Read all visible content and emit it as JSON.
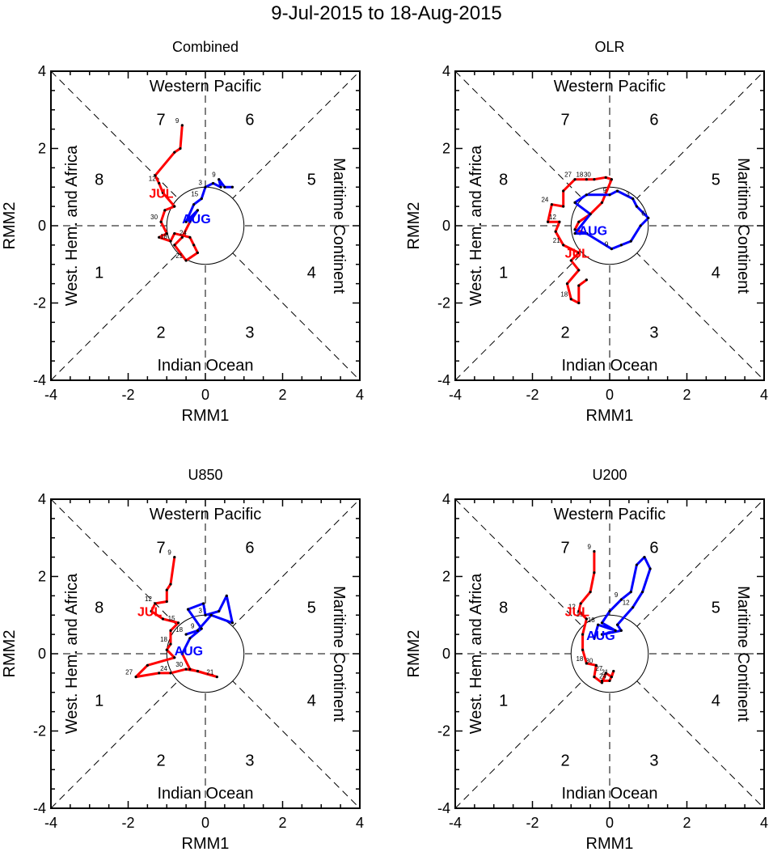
{
  "title": "9-Jul-2015 to 18-Aug-2015",
  "colors": {
    "jul": "#ff0000",
    "aug": "#0000ff",
    "axis": "#000000"
  },
  "chart_data": [
    {
      "type": "line",
      "title": "Combined",
      "xlabel": "RMM1",
      "ylabel": "RMM2",
      "xlim": [
        -4,
        4
      ],
      "ylim": [
        -4,
        4
      ],
      "xticks": [
        "-4",
        "-2",
        "0",
        "2",
        "4"
      ],
      "yticks": [
        "-4",
        "-2",
        "0",
        "2",
        "4"
      ],
      "region_labels": {
        "top": "Western Pacific",
        "bottom": "Indian Ocean",
        "left": "West. Hem. and Africa",
        "right": "Maritime Continent"
      },
      "phase_labels": [
        "1",
        "2",
        "3",
        "4",
        "5",
        "6",
        "7",
        "8"
      ],
      "series": [
        {
          "name": "JUL",
          "color": "#ff0000",
          "points": [
            [
              -0.6,
              2.6
            ],
            [
              -0.65,
              2.0
            ],
            [
              -0.8,
              1.9
            ],
            [
              -1.3,
              1.3
            ],
            [
              -1.2,
              1.1
            ],
            [
              -1.1,
              0.85
            ],
            [
              -0.8,
              0.5
            ],
            [
              -1.05,
              0.4
            ],
            [
              -1.15,
              0.1
            ],
            [
              -1.0,
              -0.2
            ],
            [
              -1.2,
              -0.3
            ],
            [
              -0.9,
              -0.4
            ],
            [
              -0.8,
              -0.2
            ],
            [
              -0.4,
              -0.3
            ],
            [
              -0.3,
              -0.5
            ],
            [
              -0.2,
              -0.7
            ],
            [
              -0.5,
              -0.9
            ],
            [
              -0.8,
              -0.5
            ],
            [
              -0.6,
              -0.3
            ],
            [
              -0.4,
              0.1
            ]
          ],
          "day_labels": [
            {
              "text": "9",
              "i": 0
            },
            {
              "text": "12",
              "i": 4
            },
            {
              "text": "30",
              "i": 8
            },
            {
              "text": "18",
              "i": 11
            },
            {
              "text": "24",
              "i": 13
            },
            {
              "text": "21",
              "i": 16
            }
          ]
        },
        {
          "name": "AUG",
          "color": "#0000ff",
          "points": [
            [
              -0.4,
              0.1
            ],
            [
              -0.2,
              0.4
            ],
            [
              -0.5,
              0.1
            ],
            [
              -0.3,
              0.55
            ],
            [
              -0.1,
              0.7
            ],
            [
              0.0,
              1.0
            ],
            [
              0.2,
              1.1
            ],
            [
              0.4,
              1.0
            ],
            [
              0.35,
              1.2
            ],
            [
              0.5,
              1.0
            ],
            [
              0.7,
              1.0
            ]
          ],
          "day_labels": [
            {
              "text": "3",
              "i": 5
            },
            {
              "text": "9",
              "i": 8
            },
            {
              "text": "15",
              "i": 4
            }
          ]
        }
      ]
    },
    {
      "type": "line",
      "title": "OLR",
      "xlabel": "RMM1",
      "ylabel": "RMM2",
      "xlim": [
        -4,
        4
      ],
      "ylim": [
        -4,
        4
      ],
      "xticks": [
        "-4",
        "-2",
        "0",
        "2",
        "4"
      ],
      "yticks": [
        "-4",
        "-2",
        "0",
        "2",
        "4"
      ],
      "region_labels": {
        "top": "Western Pacific",
        "bottom": "Indian Ocean",
        "left": "West. Hem. and Africa",
        "right": "Maritime Continent"
      },
      "phase_labels": [
        "1",
        "2",
        "3",
        "4",
        "5",
        "6",
        "7",
        "8"
      ],
      "series": [
        {
          "name": "JUL",
          "color": "#ff0000",
          "points": [
            [
              -0.6,
              -1.4
            ],
            [
              -0.8,
              -1.55
            ],
            [
              -0.8,
              -2.0
            ],
            [
              -1.0,
              -1.9
            ],
            [
              -1.1,
              -1.5
            ],
            [
              -0.8,
              -1.15
            ],
            [
              -1.0,
              -0.9
            ],
            [
              -0.8,
              -0.7
            ],
            [
              -1.2,
              -0.5
            ],
            [
              -1.4,
              -0.15
            ],
            [
              -1.3,
              0.1
            ],
            [
              -1.6,
              0.1
            ],
            [
              -1.5,
              0.55
            ],
            [
              -1.2,
              0.5
            ],
            [
              -1.2,
              0.9
            ],
            [
              -0.9,
              1.2
            ],
            [
              -0.6,
              1.2
            ],
            [
              -0.4,
              1.2
            ],
            [
              -0.1,
              1.25
            ],
            [
              0.05,
              1.2
            ],
            [
              -0.2,
              0.6
            ],
            [
              -0.5,
              0.3
            ],
            [
              -0.8,
              0.1
            ],
            [
              -0.9,
              -0.1
            ],
            [
              -0.6,
              -0.2
            ]
          ],
          "day_labels": [
            {
              "text": "18",
              "i": 3
            },
            {
              "text": "21",
              "i": 8
            },
            {
              "text": "12",
              "i": 10
            },
            {
              "text": "24",
              "i": 12
            },
            {
              "text": "27",
              "i": 15
            },
            {
              "text": "18",
              "i": 16
            },
            {
              "text": "30",
              "i": 17
            }
          ]
        },
        {
          "name": "AUG",
          "color": "#0000ff",
          "points": [
            [
              -0.6,
              -0.2
            ],
            [
              -0.9,
              -0.2
            ],
            [
              -0.5,
              0.3
            ],
            [
              -0.9,
              0.6
            ],
            [
              -0.6,
              0.8
            ],
            [
              0.0,
              0.8
            ],
            [
              0.2,
              0.9
            ],
            [
              0.6,
              0.7
            ],
            [
              0.7,
              0.5
            ],
            [
              1.0,
              0.2
            ],
            [
              0.8,
              0.0
            ],
            [
              0.55,
              -0.4
            ],
            [
              0.3,
              -0.5
            ],
            [
              0.05,
              -0.6
            ],
            [
              -0.6,
              -0.2
            ]
          ],
          "day_labels": [
            {
              "text": "3",
              "i": 7
            },
            {
              "text": "6",
              "i": 9
            },
            {
              "text": "9",
              "i": 13
            },
            {
              "text": "9",
              "i": 5
            }
          ]
        }
      ]
    },
    {
      "type": "line",
      "title": "U850",
      "xlabel": "RMM1",
      "ylabel": "RMM2",
      "xlim": [
        -4,
        4
      ],
      "ylim": [
        -4,
        4
      ],
      "xticks": [
        "-4",
        "-2",
        "0",
        "2",
        "4"
      ],
      "yticks": [
        "-4",
        "-2",
        "0",
        "2",
        "4"
      ],
      "region_labels": {
        "top": "Western Pacific",
        "bottom": "Indian Ocean",
        "left": "West. Hem. and Africa",
        "right": "Maritime Continent"
      },
      "phase_labels": [
        "1",
        "2",
        "3",
        "4",
        "5",
        "6",
        "7",
        "8"
      ],
      "series": [
        {
          "name": "JUL",
          "color": "#ff0000",
          "points": [
            [
              -0.8,
              2.5
            ],
            [
              -0.9,
              1.8
            ],
            [
              -1.0,
              1.65
            ],
            [
              -1.0,
              1.35
            ],
            [
              -1.3,
              1.3
            ],
            [
              -1.4,
              1.1
            ],
            [
              -1.1,
              0.9
            ],
            [
              -0.7,
              0.8
            ],
            [
              -0.9,
              0.6
            ],
            [
              -0.9,
              0.25
            ],
            [
              -1.0,
              0.1
            ],
            [
              -0.8,
              -0.1
            ],
            [
              -1.5,
              -0.3
            ],
            [
              -1.8,
              -0.6
            ],
            [
              -1.2,
              -0.5
            ],
            [
              -0.9,
              -0.5
            ],
            [
              -0.5,
              -0.4
            ],
            [
              -0.2,
              -0.45
            ],
            [
              0.3,
              -0.6
            ],
            [
              -0.4,
              -0.4
            ],
            [
              -0.6,
              0.0
            ]
          ],
          "day_labels": [
            {
              "text": "9",
              "i": 0
            },
            {
              "text": "12",
              "i": 4
            },
            {
              "text": "15",
              "i": 7
            },
            {
              "text": "18",
              "i": 9
            },
            {
              "text": "27",
              "i": 13
            },
            {
              "text": "30",
              "i": 16
            },
            {
              "text": "24",
              "i": 15
            },
            {
              "text": "21",
              "i": 18
            }
          ]
        },
        {
          "name": "AUG",
          "color": "#0000ff",
          "points": [
            [
              -0.6,
              0.0
            ],
            [
              -0.4,
              0.4
            ],
            [
              -0.1,
              0.65
            ],
            [
              -0.45,
              1.15
            ],
            [
              -0.05,
              1.3
            ],
            [
              0.0,
              1.0
            ],
            [
              0.35,
              1.1
            ],
            [
              0.55,
              1.5
            ],
            [
              0.7,
              0.8
            ],
            [
              0.15,
              1.0
            ],
            [
              -0.2,
              0.6
            ],
            [
              -0.5,
              0.5
            ]
          ],
          "day_labels": [
            {
              "text": "3",
              "i": 5
            },
            {
              "text": "9",
              "i": 10
            },
            {
              "text": "18",
              "i": 11
            }
          ]
        }
      ]
    },
    {
      "type": "line",
      "title": "U200",
      "xlabel": "RMM1",
      "ylabel": "RMM2",
      "xlim": [
        -4,
        4
      ],
      "ylim": [
        -4,
        4
      ],
      "xticks": [
        "-4",
        "-2",
        "0",
        "2",
        "4"
      ],
      "yticks": [
        "-4",
        "-2",
        "0",
        "2",
        "4"
      ],
      "region_labels": {
        "top": "Western Pacific",
        "bottom": "Indian Ocean",
        "left": "West. Hem. and Africa",
        "right": "Maritime Continent"
      },
      "phase_labels": [
        "1",
        "2",
        "3",
        "4",
        "5",
        "6",
        "7",
        "8"
      ],
      "series": [
        {
          "name": "JUL",
          "color": "#ff0000",
          "points": [
            [
              -0.4,
              2.65
            ],
            [
              -0.4,
              2.1
            ],
            [
              -0.5,
              1.6
            ],
            [
              -0.75,
              1.3
            ],
            [
              -0.8,
              1.1
            ],
            [
              -0.6,
              0.9
            ],
            [
              -0.7,
              0.5
            ],
            [
              -0.7,
              0.1
            ],
            [
              -0.6,
              -0.25
            ],
            [
              -0.35,
              -0.3
            ],
            [
              -0.4,
              -0.6
            ],
            [
              -0.2,
              -0.75
            ],
            [
              -0.1,
              -0.5
            ],
            [
              0.05,
              -0.6
            ],
            [
              0.1,
              -0.45
            ],
            [
              0.0,
              -0.7
            ],
            [
              -0.2,
              -0.7
            ]
          ],
          "day_labels": [
            {
              "text": "9",
              "i": 0
            },
            {
              "text": "12",
              "i": 4
            },
            {
              "text": "15",
              "i": 5
            },
            {
              "text": "18",
              "i": 8
            },
            {
              "text": "30",
              "i": 9
            },
            {
              "text": "27",
              "i": 12
            },
            {
              "text": "24",
              "i": 15
            },
            {
              "text": "21",
              "i": 13
            }
          ]
        },
        {
          "name": "AUG",
          "color": "#0000ff",
          "points": [
            [
              -0.4,
              0.4
            ],
            [
              -0.3,
              0.75
            ],
            [
              0.15,
              0.6
            ],
            [
              -0.2,
              0.8
            ],
            [
              0.0,
              1.1
            ],
            [
              0.3,
              1.4
            ],
            [
              0.55,
              1.6
            ],
            [
              0.7,
              2.3
            ],
            [
              0.9,
              2.5
            ],
            [
              1.05,
              2.2
            ],
            [
              0.85,
              1.6
            ],
            [
              0.6,
              1.2
            ],
            [
              0.2,
              0.75
            ],
            [
              0.3,
              0.6
            ],
            [
              -0.2,
              0.5
            ]
          ],
          "day_labels": [
            {
              "text": "9",
              "i": 5
            },
            {
              "text": "12",
              "i": 11
            },
            {
              "text": "18",
              "i": 1
            }
          ]
        }
      ]
    }
  ]
}
